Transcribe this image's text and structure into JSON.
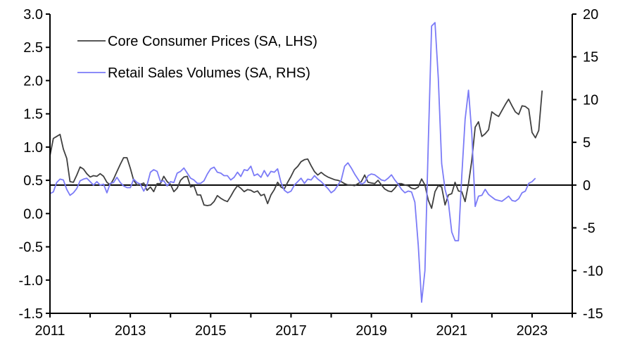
{
  "chart_data": {
    "type": "line",
    "title": "",
    "xlabel": "",
    "ylabel_left": "",
    "ylabel_right": "",
    "x_start": "2011-01",
    "frequency": "monthly",
    "xlim": [
      2011,
      2024
    ],
    "x_ticks": [
      2011,
      2012,
      2013,
      2014,
      2015,
      2016,
      2017,
      2018,
      2019,
      2020,
      2021,
      2022,
      2023,
      2024
    ],
    "x_tick_labels": [
      "2011",
      "",
      "2013",
      "",
      "2015",
      "",
      "2017",
      "",
      "2019",
      "",
      "2021",
      "",
      "2023",
      ""
    ],
    "ylim_left": [
      -1.5,
      3.0
    ],
    "y_ticks_left": [
      3.0,
      2.5,
      2.0,
      1.5,
      1.0,
      0.5,
      0.0,
      -0.5,
      -1.0,
      -1.5
    ],
    "y_tick_labels_left": [
      "3.0",
      "2.5",
      "2.0",
      "1.5",
      "1.0",
      "0.5",
      "0.0",
      "-0.5",
      "-1.0",
      "-1.5"
    ],
    "ylim_right": [
      -15,
      20
    ],
    "y_ticks_right": [
      20,
      15,
      10,
      5,
      0,
      -5,
      -10,
      -15
    ],
    "y_tick_labels_right": [
      "20",
      "15",
      "10",
      "5",
      "0",
      "-5",
      "-10",
      "-15"
    ],
    "reference_line": {
      "axis": "right",
      "value": 0
    },
    "grid": false,
    "legend_position": "top-left",
    "series": [
      {
        "name": "Core Consumer Prices (SA, LHS)",
        "axis": "left",
        "color": "#404040",
        "values": [
          0.87,
          1.13,
          1.16,
          1.19,
          0.97,
          0.83,
          0.48,
          0.47,
          0.58,
          0.7,
          0.67,
          0.6,
          0.55,
          0.57,
          0.56,
          0.6,
          0.56,
          0.47,
          0.43,
          0.52,
          0.63,
          0.74,
          0.84,
          0.84,
          0.68,
          0.5,
          0.43,
          0.44,
          0.46,
          0.35,
          0.4,
          0.33,
          0.45,
          0.45,
          0.56,
          0.48,
          0.44,
          0.33,
          0.38,
          0.5,
          0.55,
          0.56,
          0.4,
          0.42,
          0.28,
          0.28,
          0.13,
          0.12,
          0.13,
          0.18,
          0.27,
          0.23,
          0.2,
          0.18,
          0.26,
          0.35,
          0.42,
          0.38,
          0.33,
          0.36,
          0.35,
          0.32,
          0.34,
          0.27,
          0.29,
          0.15,
          0.28,
          0.36,
          0.47,
          0.4,
          0.37,
          0.47,
          0.56,
          0.66,
          0.71,
          0.78,
          0.81,
          0.82,
          0.72,
          0.63,
          0.58,
          0.62,
          0.58,
          0.55,
          0.53,
          0.51,
          0.5,
          0.48,
          0.45,
          0.43,
          0.43,
          0.42,
          0.45,
          0.48,
          0.58,
          0.47,
          0.46,
          0.45,
          0.5,
          0.43,
          0.37,
          0.34,
          0.33,
          0.38,
          0.45,
          0.45,
          0.43,
          0.42,
          0.38,
          0.37,
          0.4,
          0.52,
          0.43,
          0.2,
          0.08,
          0.33,
          0.42,
          0.4,
          0.13,
          0.28,
          0.3,
          0.47,
          0.34,
          0.33,
          0.18,
          0.45,
          0.8,
          1.3,
          1.38,
          1.16,
          1.2,
          1.26,
          1.53,
          1.49,
          1.46,
          1.55,
          1.64,
          1.72,
          1.62,
          1.53,
          1.49,
          1.62,
          1.61,
          1.57,
          1.22,
          1.14,
          1.25,
          1.85
        ]
      },
      {
        "name": "Retail Sales Volumes (SA, RHS)",
        "axis": "right",
        "color": "#7B7BF7",
        "values": [
          -1.0,
          -0.8,
          0.3,
          0.7,
          0.6,
          -0.5,
          -1.2,
          -0.9,
          -0.4,
          0.5,
          0.7,
          0.8,
          0.4,
          0.0,
          0.4,
          0.0,
          0.1,
          -0.9,
          0.2,
          0.3,
          0.9,
          0.3,
          -0.1,
          -0.3,
          -0.3,
          0.7,
          0.3,
          0.1,
          -0.7,
          0.0,
          1.5,
          1.8,
          1.6,
          0.4,
          0.5,
          -0.1,
          0.4,
          0.3,
          1.4,
          1.6,
          2.0,
          1.4,
          0.8,
          0.6,
          0.2,
          0.2,
          0.5,
          1.3,
          1.9,
          2.1,
          1.5,
          1.4,
          1.1,
          1.1,
          0.6,
          0.9,
          1.5,
          1.0,
          1.8,
          1.7,
          2.2,
          1.1,
          1.3,
          0.9,
          1.7,
          1.0,
          1.6,
          1.5,
          1.9,
          0.3,
          -0.6,
          -0.9,
          -0.7,
          0.0,
          0.4,
          0.8,
          0.2,
          0.7,
          0.6,
          1.1,
          0.7,
          0.4,
          0.0,
          -0.4,
          -0.9,
          -0.6,
          0.0,
          0.6,
          2.2,
          2.6,
          2.0,
          1.3,
          0.7,
          0.1,
          0.3,
          1.1,
          1.3,
          1.2,
          0.9,
          0.6,
          0.5,
          0.8,
          1.2,
          0.6,
          0.1,
          -0.5,
          -0.9,
          -0.7,
          -0.8,
          -2.0,
          -7.0,
          -13.7,
          -10.0,
          5.0,
          18.6,
          19.0,
          12.5,
          2.5,
          -0.5,
          -2.0,
          -5.5,
          -6.5,
          -6.5,
          1.0,
          7.7,
          11.1,
          6.0,
          -2.5,
          -1.3,
          -1.2,
          -0.5,
          -1.1,
          -1.4,
          -1.7,
          -1.8,
          -1.9,
          -1.6,
          -1.3,
          -1.8,
          -1.9,
          -1.6,
          -0.9,
          -0.7,
          0.2,
          0.4,
          0.8
        ]
      }
    ]
  }
}
